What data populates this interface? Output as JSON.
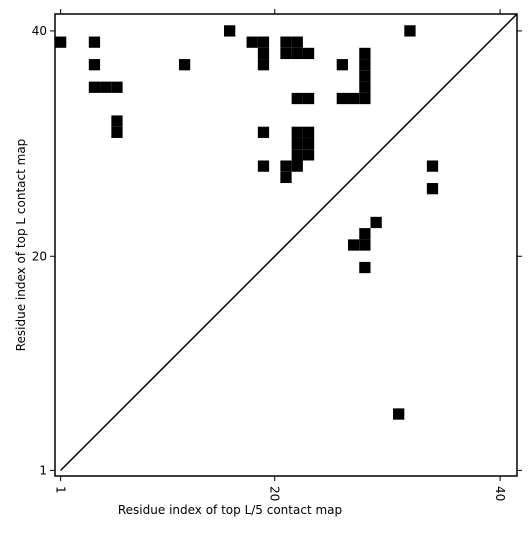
{
  "chart_data": {
    "type": "scatter",
    "marker": "square",
    "color": "#000000",
    "xlabel": "Residue index of top L/5 contact map",
    "ylabel": "Residue index of top L contact map",
    "x": [
      1,
      4,
      4,
      4,
      5,
      6,
      6,
      6,
      12,
      16,
      18,
      19,
      19,
      19,
      21,
      22,
      21,
      22,
      23,
      22,
      23,
      19,
      22,
      23,
      22,
      23,
      22,
      23,
      19,
      21,
      22,
      21,
      26,
      28,
      28,
      28,
      28,
      28,
      26,
      27,
      32,
      34,
      34,
      29,
      28,
      27,
      28,
      28,
      31
    ],
    "y": [
      39,
      39,
      37,
      35,
      35,
      35,
      32,
      31,
      37,
      40,
      39,
      39,
      38,
      37,
      39,
      39,
      38,
      38,
      38,
      34,
      34,
      31,
      31,
      31,
      30,
      30,
      29,
      29,
      28,
      28,
      28,
      27,
      37,
      38,
      37,
      36,
      35,
      34,
      34,
      34,
      40,
      28,
      26,
      23,
      22,
      21,
      21,
      19,
      6
    ],
    "xlim": [
      0.5,
      41.5
    ],
    "ylim": [
      0.5,
      41.5
    ],
    "xticks": [
      1,
      20,
      40
    ],
    "yticks": [
      1,
      20,
      40
    ]
  }
}
